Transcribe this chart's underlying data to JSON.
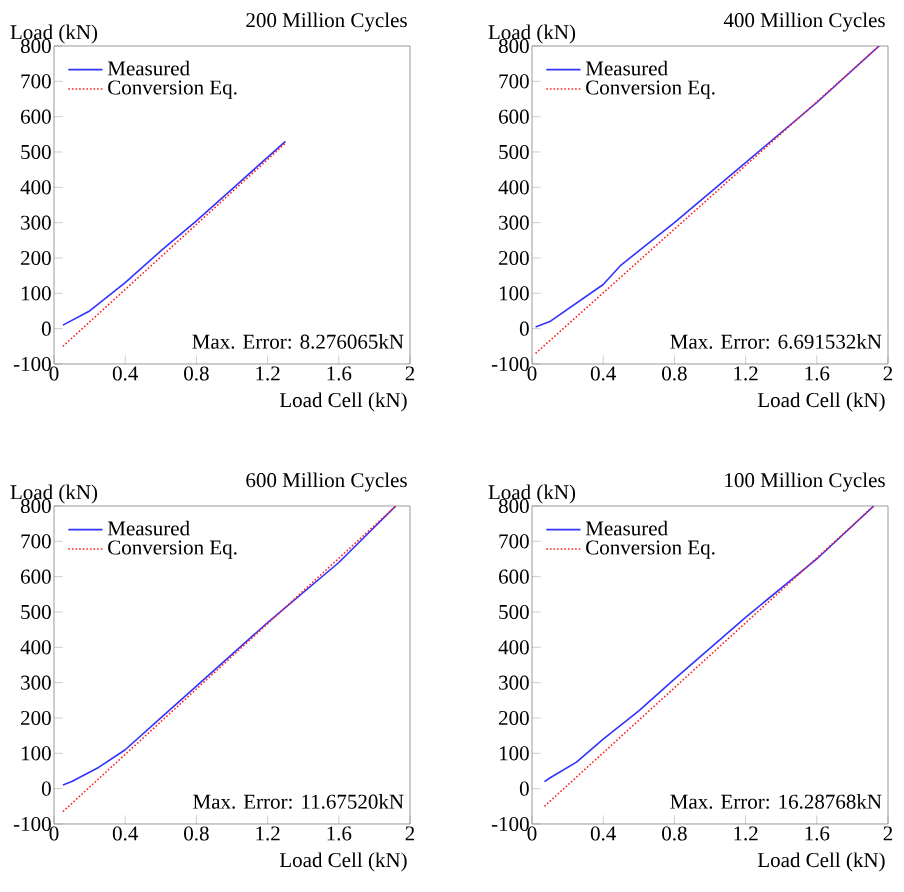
{
  "chart_data": [
    {
      "type": "line",
      "title": "200 Million Cycles",
      "xlabel": "Load Cell (kN)",
      "ylabel": "Load (kN)",
      "xlim": [
        0,
        2
      ],
      "ylim": [
        -100,
        800
      ],
      "xticks": [
        0,
        0.4,
        0.8,
        1.2,
        1.6,
        2
      ],
      "yticks": [
        -100,
        0,
        100,
        200,
        300,
        400,
        500,
        600,
        700,
        800
      ],
      "legend": "top left",
      "annotations": [
        "Max. Error: 8.276065kN"
      ],
      "series": [
        {
          "name": "Measured",
          "color": "#3333ff",
          "line_style": "solid",
          "x": [
            0.05,
            0.2,
            0.4,
            0.6,
            0.8,
            1.0,
            1.3
          ],
          "values": [
            10,
            50,
            130,
            220,
            305,
            395,
            530
          ]
        },
        {
          "name": "Conversion Eq.",
          "color": "#ff2020",
          "line_style": "dotted",
          "x": [
            0.05,
            1.3
          ],
          "values": [
            -50,
            525
          ]
        }
      ]
    },
    {
      "type": "line",
      "title": "400 Million Cycles",
      "xlabel": "Load Cell (kN)",
      "ylabel": "Load (kN)",
      "xlim": [
        0,
        2
      ],
      "ylim": [
        -100,
        800
      ],
      "xticks": [
        0,
        0.4,
        0.8,
        1.2,
        1.6,
        2
      ],
      "yticks": [
        -100,
        0,
        100,
        200,
        300,
        400,
        500,
        600,
        700,
        800
      ],
      "legend": "top left",
      "annotations": [
        "Max. Error: 6.691532kN"
      ],
      "series": [
        {
          "name": "Measured",
          "color": "#3333ff",
          "line_style": "solid",
          "x": [
            0.02,
            0.1,
            0.2,
            0.4,
            0.5,
            0.6,
            0.8,
            1.2,
            1.6,
            1.95
          ],
          "values": [
            5,
            20,
            55,
            125,
            180,
            220,
            300,
            470,
            640,
            800
          ]
        },
        {
          "name": "Conversion Eq.",
          "color": "#ff2020",
          "line_style": "dotted",
          "x": [
            0.02,
            1.95
          ],
          "values": [
            -70,
            800
          ]
        }
      ]
    },
    {
      "type": "line",
      "title": "600 Million Cycles",
      "xlabel": "Load Cell (kN)",
      "ylabel": "Load (kN)",
      "xlim": [
        0,
        2
      ],
      "ylim": [
        -100,
        800
      ],
      "xticks": [
        0,
        0.4,
        0.8,
        1.2,
        1.6,
        2
      ],
      "yticks": [
        -100,
        0,
        100,
        200,
        300,
        400,
        500,
        600,
        700,
        800
      ],
      "legend": "top left",
      "annotations": [
        "Max. Error: 11.67520kN"
      ],
      "series": [
        {
          "name": "Measured",
          "color": "#3333ff",
          "line_style": "solid",
          "x": [
            0.05,
            0.1,
            0.25,
            0.4,
            0.6,
            0.8,
            1.2,
            1.6,
            1.92
          ],
          "values": [
            10,
            20,
            60,
            110,
            200,
            290,
            470,
            640,
            800
          ]
        },
        {
          "name": "Conversion Eq.",
          "color": "#ff2020",
          "line_style": "dotted",
          "x": [
            0.05,
            1.92
          ],
          "values": [
            -65,
            800
          ]
        }
      ]
    },
    {
      "type": "line",
      "title": "100 Million Cycles",
      "xlabel": "Load Cell (kN)",
      "ylabel": "Load (kN)",
      "xlim": [
        0,
        2
      ],
      "ylim": [
        -100,
        800
      ],
      "xticks": [
        0,
        0.4,
        0.8,
        1.2,
        1.6,
        2
      ],
      "yticks": [
        -100,
        0,
        100,
        200,
        300,
        400,
        500,
        600,
        700,
        800
      ],
      "legend": "top left",
      "annotations": [
        "Max. Error: 16.28768kN"
      ],
      "series": [
        {
          "name": "Measured",
          "color": "#3333ff",
          "line_style": "solid",
          "x": [
            0.07,
            0.1,
            0.25,
            0.4,
            0.6,
            0.8,
            1.2,
            1.6,
            1.92
          ],
          "values": [
            20,
            30,
            75,
            140,
            220,
            310,
            485,
            650,
            800
          ]
        },
        {
          "name": "Conversion Eq.",
          "color": "#ff2020",
          "line_style": "dotted",
          "x": [
            0.07,
            1.92
          ],
          "values": [
            -50,
            800
          ]
        }
      ]
    }
  ]
}
